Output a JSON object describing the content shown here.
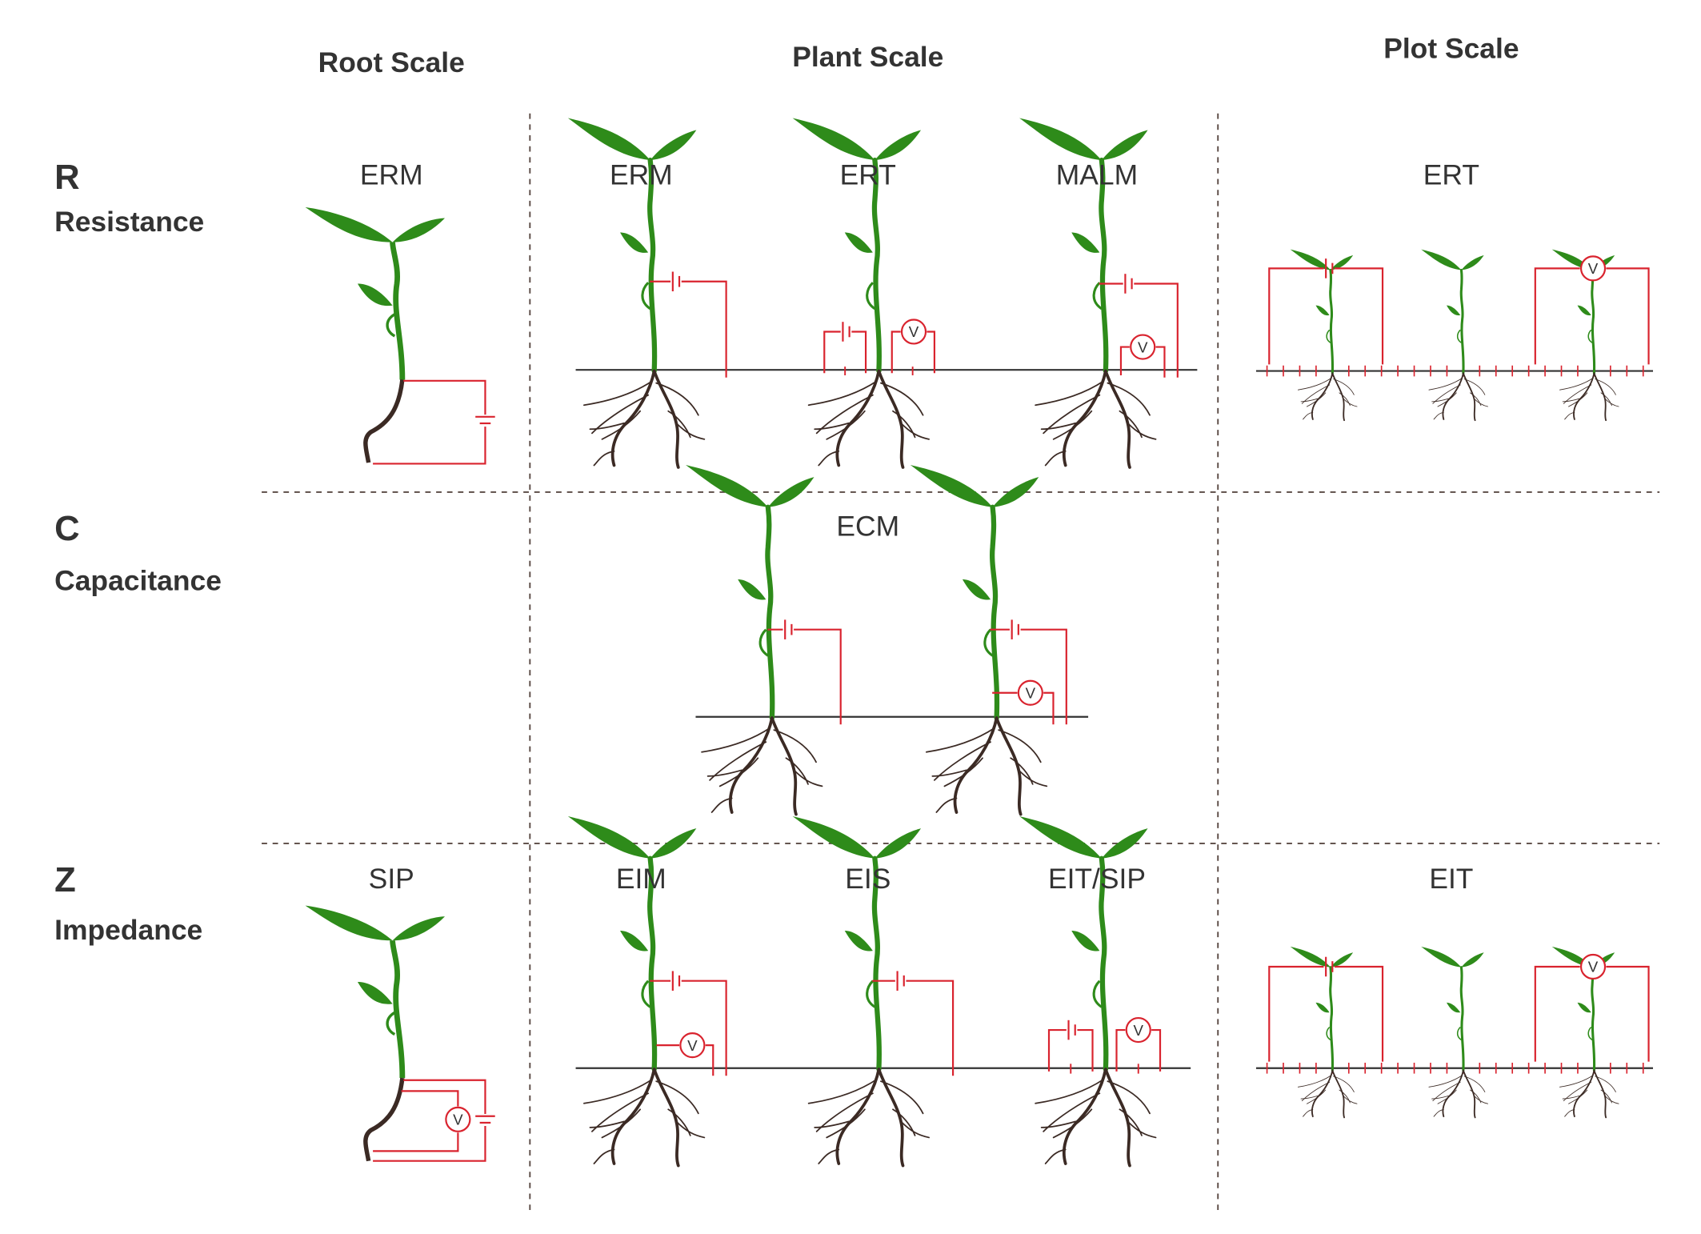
{
  "scales": {
    "root": "Root Scale",
    "plant": "Plant Scale",
    "plot": "Plot Scale"
  },
  "rows": {
    "r": {
      "letter": "R",
      "name": "Resistance"
    },
    "c": {
      "letter": "C",
      "name": "Capacitance"
    },
    "z": {
      "letter": "Z",
      "name": "Impedance"
    }
  },
  "methods": {
    "r_root": "ERM",
    "r_plant_1": "ERM",
    "r_plant_2": "ERT",
    "r_plant_3": "MALM",
    "r_plot": "ERT",
    "c_plant": "ECM",
    "z_root": "SIP",
    "z_plant_1": "EIM",
    "z_plant_2": "EIS",
    "z_plant_3": "EIT/SIP",
    "z_plot": "EIT"
  },
  "voltmeter_symbol": "V",
  "colors": {
    "text": "#333333",
    "circuit": "#d9232e",
    "leaf": "#2e8b1a",
    "root": "#3b2a24",
    "divider": "#5a4a44"
  }
}
